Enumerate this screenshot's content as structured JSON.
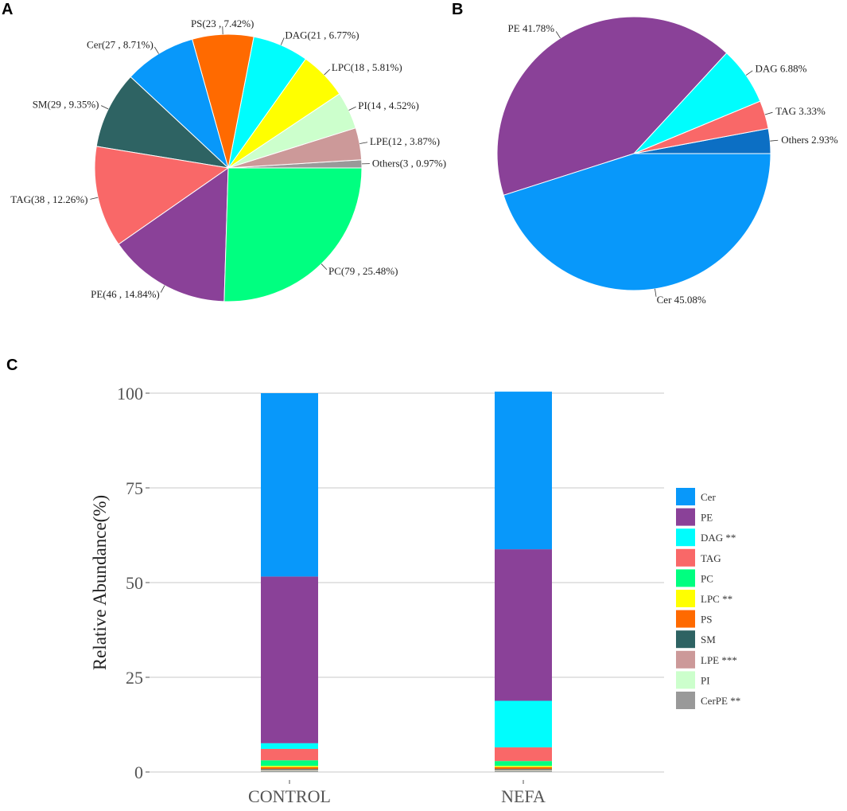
{
  "colors": {
    "Cer": "#0898FA",
    "PE": "#8A4198",
    "DAG": "#00FDFD",
    "TAG": "#F96868",
    "PC": "#00FF80",
    "LPC": "#FFFF00",
    "PS": "#FF6A00",
    "SM": "#2E6363",
    "LPE": "#CC9999",
    "PI": "#CCFFCC",
    "CerPE": "#999999",
    "Others": "#999999",
    "Others_B": "#0C6FC4"
  },
  "panels": {
    "a": "A",
    "b": "B",
    "c": "C"
  },
  "chart_data": [
    {
      "type": "pie",
      "panel": "A",
      "slices": [
        {
          "name": "Others",
          "value": 3,
          "label": "Others(3 , 0.97%)"
        },
        {
          "name": "LPE",
          "value": 12,
          "label": "LPE(12 , 3.87%)"
        },
        {
          "name": "PI",
          "value": 14,
          "label": "PI(14 , 4.52%)"
        },
        {
          "name": "LPC",
          "value": 18,
          "label": "LPC(18 , 5.81%)"
        },
        {
          "name": "DAG",
          "value": 21,
          "label": "DAG(21 , 6.77%)"
        },
        {
          "name": "PS",
          "value": 23,
          "label": "PS(23 , 7.42%)"
        },
        {
          "name": "Cer",
          "value": 27,
          "label": "Cer(27 , 8.71%)"
        },
        {
          "name": "SM",
          "value": 29,
          "label": "SM(29 , 9.35%)"
        },
        {
          "name": "TAG",
          "value": 38,
          "label": "TAG(38 , 12.26%)"
        },
        {
          "name": "PE",
          "value": 46,
          "label": "PE(46 , 14.84%)"
        },
        {
          "name": "PC",
          "value": 79,
          "label": "PC(79 , 25.48%)"
        }
      ]
    },
    {
      "type": "pie",
      "panel": "B",
      "slices": [
        {
          "name": "Others",
          "value": 2.93,
          "label": "Others 2.93%"
        },
        {
          "name": "TAG",
          "value": 3.33,
          "label": "TAG 3.33%"
        },
        {
          "name": "DAG",
          "value": 6.88,
          "label": "DAG 6.88%"
        },
        {
          "name": "PE",
          "value": 41.78,
          "label": "PE 41.78%"
        },
        {
          "name": "Cer",
          "value": 45.08,
          "label": "Cer 45.08%"
        }
      ]
    },
    {
      "type": "bar",
      "stacked": true,
      "panel": "C",
      "categories": [
        "CONTROL",
        "NEFA"
      ],
      "ylabel": "Relative Abundance(%)",
      "ylim": [
        0,
        100
      ],
      "yticks": [
        "0",
        "25",
        "50",
        "75",
        "100"
      ],
      "series": [
        {
          "name": "CerPE",
          "legend": "CerPE **",
          "values": [
            0.3,
            0.3
          ]
        },
        {
          "name": "PI",
          "legend": "PI",
          "values": [
            0.1,
            0.1
          ]
        },
        {
          "name": "LPE",
          "legend": "LPE ***",
          "values": [
            0.2,
            0.2
          ]
        },
        {
          "name": "SM",
          "legend": "SM",
          "values": [
            0.2,
            0.2
          ]
        },
        {
          "name": "PS",
          "legend": "PS",
          "values": [
            0.5,
            0.5
          ]
        },
        {
          "name": "LPC",
          "legend": "LPC **",
          "values": [
            0.3,
            0.3
          ]
        },
        {
          "name": "PC",
          "legend": "PC",
          "values": [
            1.5,
            1.3
          ]
        },
        {
          "name": "TAG",
          "legend": "TAG",
          "values": [
            3.0,
            3.6
          ]
        },
        {
          "name": "DAG",
          "legend": "DAG **",
          "values": [
            1.5,
            12.3
          ]
        },
        {
          "name": "PE",
          "legend": "PE",
          "values": [
            44.0,
            40.0
          ]
        },
        {
          "name": "Cer",
          "legend": "Cer",
          "values": [
            48.4,
            41.6
          ]
        }
      ],
      "legend_order": [
        "Cer",
        "PE",
        "DAG",
        "TAG",
        "PC",
        "LPC",
        "PS",
        "SM",
        "LPE",
        "PI",
        "CerPE"
      ]
    }
  ]
}
